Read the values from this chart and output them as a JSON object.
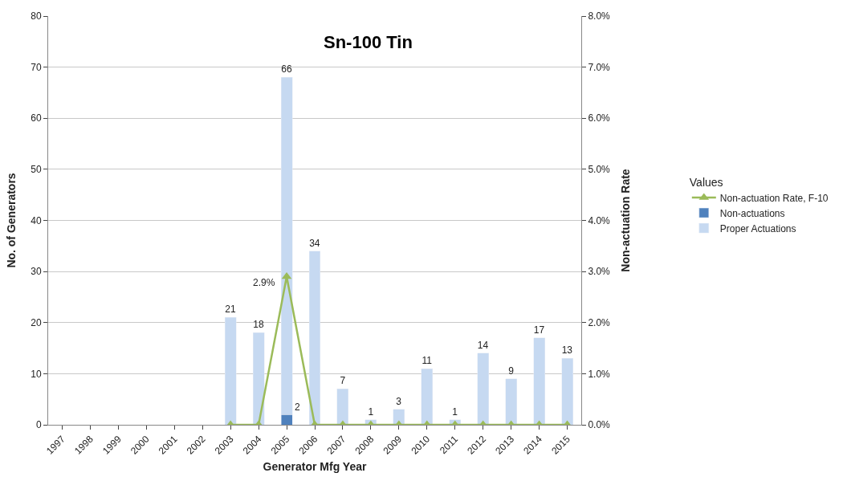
{
  "chart_data": {
    "type": "bar",
    "stacked": true,
    "annotations": [
      "Sn-100 Tin"
    ],
    "xlabel": "Generator Mfg Year",
    "ylabel": "No. of Generators",
    "y2label": "Non-actuation Rate",
    "legend_title": "Values",
    "categories": [
      "1997",
      "1998",
      "1999",
      "2000",
      "2001",
      "2002",
      "2003",
      "2004",
      "2005",
      "2006",
      "2007",
      "2008",
      "2009",
      "2010",
      "2011",
      "2012",
      "2013",
      "2014",
      "2015"
    ],
    "series": [
      {
        "name": "Non-actuations",
        "color": "#4f81bd",
        "values": [
          null,
          null,
          null,
          null,
          null,
          null,
          0,
          0,
          2,
          0,
          0,
          0,
          0,
          0,
          0,
          0,
          0,
          0,
          0
        ],
        "value_labels": [
          null,
          null,
          null,
          null,
          null,
          null,
          null,
          null,
          "2",
          null,
          null,
          null,
          null,
          null,
          null,
          null,
          null,
          null,
          null
        ]
      },
      {
        "name": "Proper Actuations",
        "color": "#c6d9f1",
        "values": [
          null,
          null,
          null,
          null,
          null,
          null,
          21,
          18,
          66,
          34,
          7,
          1,
          3,
          11,
          1,
          14,
          9,
          17,
          13
        ],
        "value_labels": [
          null,
          null,
          null,
          null,
          null,
          null,
          "21",
          "18",
          "66",
          "34",
          "7",
          "1",
          "3",
          "11",
          "1",
          "14",
          "9",
          "17",
          "13"
        ]
      },
      {
        "name": "Non-actuation Rate, F-10",
        "type": "line",
        "axis": "y2",
        "marker": "triangle",
        "color": "#9bbb59",
        "values": [
          null,
          null,
          null,
          null,
          null,
          null,
          0,
          0,
          2.9,
          0,
          0,
          0,
          0,
          0,
          0,
          0,
          0,
          0,
          0
        ],
        "value_labels": [
          null,
          null,
          null,
          null,
          null,
          null,
          null,
          null,
          "2.9%",
          null,
          null,
          null,
          null,
          null,
          null,
          null,
          null,
          null,
          null
        ]
      }
    ],
    "ylim": [
      0,
      80
    ],
    "yticks": [
      0,
      10,
      20,
      30,
      40,
      50,
      60,
      70,
      80
    ],
    "y2lim": [
      0,
      8
    ],
    "y2ticks": [
      {
        "value": 0,
        "label": "0.0%"
      },
      {
        "value": 1,
        "label": "1.0%"
      },
      {
        "value": 2,
        "label": "2.0%"
      },
      {
        "value": 3,
        "label": "3.0%"
      },
      {
        "value": 4,
        "label": "4.0%"
      },
      {
        "value": 5,
        "label": "5.0%"
      },
      {
        "value": 6,
        "label": "6.0%"
      },
      {
        "value": 7,
        "label": "7.0%"
      },
      {
        "value": 8,
        "label": "8.0%"
      }
    ],
    "grid": "y",
    "legend": "right"
  }
}
